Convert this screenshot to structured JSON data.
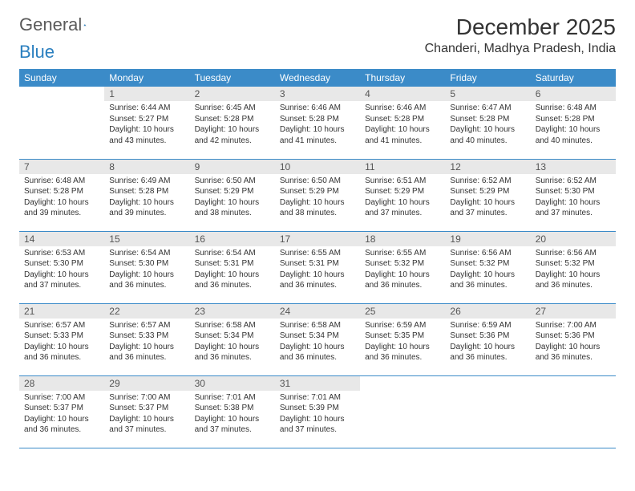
{
  "logo": {
    "word1": "General",
    "word2": "Blue"
  },
  "title": "December 2025",
  "location": "Chanderi, Madhya Pradesh, India",
  "colors": {
    "header_bg": "#3b8bc8",
    "header_text": "#ffffff",
    "daynum_bg": "#e8e8e8",
    "rule": "#3b8bc8",
    "body_text": "#333333",
    "logo_gray": "#5a5a5a",
    "logo_blue": "#2a7fbf"
  },
  "day_headers": [
    "Sunday",
    "Monday",
    "Tuesday",
    "Wednesday",
    "Thursday",
    "Friday",
    "Saturday"
  ],
  "weeks": [
    [
      null,
      {
        "n": "1",
        "sr": "6:44 AM",
        "ss": "5:27 PM",
        "dl": "10 hours and 43 minutes."
      },
      {
        "n": "2",
        "sr": "6:45 AM",
        "ss": "5:28 PM",
        "dl": "10 hours and 42 minutes."
      },
      {
        "n": "3",
        "sr": "6:46 AM",
        "ss": "5:28 PM",
        "dl": "10 hours and 41 minutes."
      },
      {
        "n": "4",
        "sr": "6:46 AM",
        "ss": "5:28 PM",
        "dl": "10 hours and 41 minutes."
      },
      {
        "n": "5",
        "sr": "6:47 AM",
        "ss": "5:28 PM",
        "dl": "10 hours and 40 minutes."
      },
      {
        "n": "6",
        "sr": "6:48 AM",
        "ss": "5:28 PM",
        "dl": "10 hours and 40 minutes."
      }
    ],
    [
      {
        "n": "7",
        "sr": "6:48 AM",
        "ss": "5:28 PM",
        "dl": "10 hours and 39 minutes."
      },
      {
        "n": "8",
        "sr": "6:49 AM",
        "ss": "5:28 PM",
        "dl": "10 hours and 39 minutes."
      },
      {
        "n": "9",
        "sr": "6:50 AM",
        "ss": "5:29 PM",
        "dl": "10 hours and 38 minutes."
      },
      {
        "n": "10",
        "sr": "6:50 AM",
        "ss": "5:29 PM",
        "dl": "10 hours and 38 minutes."
      },
      {
        "n": "11",
        "sr": "6:51 AM",
        "ss": "5:29 PM",
        "dl": "10 hours and 37 minutes."
      },
      {
        "n": "12",
        "sr": "6:52 AM",
        "ss": "5:29 PM",
        "dl": "10 hours and 37 minutes."
      },
      {
        "n": "13",
        "sr": "6:52 AM",
        "ss": "5:30 PM",
        "dl": "10 hours and 37 minutes."
      }
    ],
    [
      {
        "n": "14",
        "sr": "6:53 AM",
        "ss": "5:30 PM",
        "dl": "10 hours and 37 minutes."
      },
      {
        "n": "15",
        "sr": "6:54 AM",
        "ss": "5:30 PM",
        "dl": "10 hours and 36 minutes."
      },
      {
        "n": "16",
        "sr": "6:54 AM",
        "ss": "5:31 PM",
        "dl": "10 hours and 36 minutes."
      },
      {
        "n": "17",
        "sr": "6:55 AM",
        "ss": "5:31 PM",
        "dl": "10 hours and 36 minutes."
      },
      {
        "n": "18",
        "sr": "6:55 AM",
        "ss": "5:32 PM",
        "dl": "10 hours and 36 minutes."
      },
      {
        "n": "19",
        "sr": "6:56 AM",
        "ss": "5:32 PM",
        "dl": "10 hours and 36 minutes."
      },
      {
        "n": "20",
        "sr": "6:56 AM",
        "ss": "5:32 PM",
        "dl": "10 hours and 36 minutes."
      }
    ],
    [
      {
        "n": "21",
        "sr": "6:57 AM",
        "ss": "5:33 PM",
        "dl": "10 hours and 36 minutes."
      },
      {
        "n": "22",
        "sr": "6:57 AM",
        "ss": "5:33 PM",
        "dl": "10 hours and 36 minutes."
      },
      {
        "n": "23",
        "sr": "6:58 AM",
        "ss": "5:34 PM",
        "dl": "10 hours and 36 minutes."
      },
      {
        "n": "24",
        "sr": "6:58 AM",
        "ss": "5:34 PM",
        "dl": "10 hours and 36 minutes."
      },
      {
        "n": "25",
        "sr": "6:59 AM",
        "ss": "5:35 PM",
        "dl": "10 hours and 36 minutes."
      },
      {
        "n": "26",
        "sr": "6:59 AM",
        "ss": "5:36 PM",
        "dl": "10 hours and 36 minutes."
      },
      {
        "n": "27",
        "sr": "7:00 AM",
        "ss": "5:36 PM",
        "dl": "10 hours and 36 minutes."
      }
    ],
    [
      {
        "n": "28",
        "sr": "7:00 AM",
        "ss": "5:37 PM",
        "dl": "10 hours and 36 minutes."
      },
      {
        "n": "29",
        "sr": "7:00 AM",
        "ss": "5:37 PM",
        "dl": "10 hours and 37 minutes."
      },
      {
        "n": "30",
        "sr": "7:01 AM",
        "ss": "5:38 PM",
        "dl": "10 hours and 37 minutes."
      },
      {
        "n": "31",
        "sr": "7:01 AM",
        "ss": "5:39 PM",
        "dl": "10 hours and 37 minutes."
      },
      null,
      null,
      null
    ]
  ],
  "labels": {
    "sunrise": "Sunrise:",
    "sunset": "Sunset:",
    "daylight": "Daylight:"
  }
}
